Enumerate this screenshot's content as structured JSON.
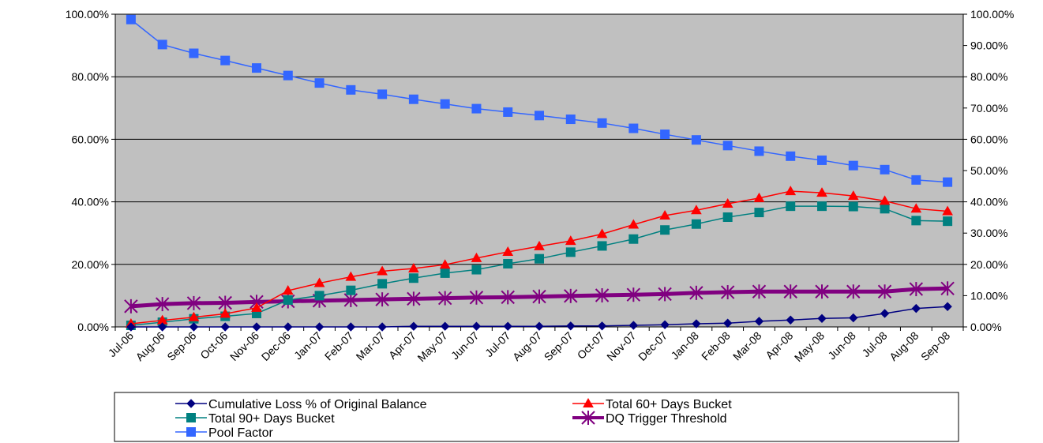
{
  "chart_data": {
    "type": "line",
    "categories": [
      "Jul-06",
      "Aug-06",
      "Sep-06",
      "Oct-06",
      "Nov-06",
      "Dec-06",
      "Jan-07",
      "Feb-07",
      "Mar-07",
      "Apr-07",
      "May-07",
      "Jun-07",
      "Jul-07",
      "Aug-07",
      "Sep-07",
      "Oct-07",
      "Nov-07",
      "Dec-07",
      "Jan-08",
      "Feb-08",
      "Mar-08",
      "Apr-08",
      "May-08",
      "Jun-08",
      "Jul-08",
      "Aug-08",
      "Sep-08"
    ],
    "y_left": {
      "ylim": [
        0,
        100
      ],
      "ticks": [
        "0.00%",
        "20.00%",
        "40.00%",
        "60.00%",
        "80.00%",
        "100.00%"
      ]
    },
    "y_right": {
      "ylim": [
        0,
        100
      ],
      "ticks": [
        "0.00%",
        "10.00%",
        "20.00%",
        "30.00%",
        "40.00%",
        "50.00%",
        "60.00%",
        "70.00%",
        "80.00%",
        "90.00%",
        "100.00%"
      ]
    },
    "grid": true,
    "plot_background": "#c0c0c0",
    "legend_position": "bottom",
    "series": [
      {
        "name": "Cumulative Loss % of Original Balance",
        "axis": "left",
        "color": "#000080",
        "marker": "diamond",
        "values": [
          0,
          0,
          0,
          0,
          0,
          0,
          0,
          0,
          0,
          0.2,
          0.2,
          0.2,
          0.2,
          0.2,
          0.3,
          0.3,
          0.5,
          0.7,
          1.0,
          1.2,
          1.8,
          2.2,
          2.7,
          2.9,
          4.3,
          5.9,
          6.5
        ]
      },
      {
        "name": "Total 60+ Days Bucket",
        "axis": "left",
        "color": "#ff0000",
        "marker": "triangle",
        "values": [
          1.0,
          2.1,
          3.1,
          4.2,
          6.1,
          11.6,
          14.0,
          16.0,
          17.8,
          18.7,
          19.9,
          22.0,
          24.0,
          25.8,
          27.5,
          29.7,
          32.7,
          35.6,
          37.3,
          39.4,
          41.2,
          43.4,
          42.9,
          41.9,
          40.3,
          37.8,
          37.0
        ]
      },
      {
        "name": "Total 90+ Days Bucket",
        "axis": "left",
        "color": "#008080",
        "marker": "square",
        "values": [
          0.5,
          1.5,
          2.6,
          3.4,
          4.3,
          8.6,
          10.0,
          11.7,
          13.8,
          15.6,
          17.2,
          18.3,
          20.2,
          21.8,
          23.9,
          25.9,
          28.1,
          31.0,
          32.9,
          35.1,
          36.6,
          38.6,
          38.6,
          38.5,
          37.8,
          34.0,
          33.8
        ]
      },
      {
        "name": "DQ Trigger Threshold",
        "axis": "left",
        "color": "#800080",
        "marker": "star",
        "values": [
          6.6,
          7.3,
          7.6,
          7.7,
          8.0,
          8.2,
          8.4,
          8.6,
          8.8,
          9.0,
          9.2,
          9.4,
          9.5,
          9.7,
          9.9,
          10.1,
          10.3,
          10.5,
          10.9,
          11.1,
          11.3,
          11.3,
          11.3,
          11.3,
          11.3,
          12.1,
          12.3
        ]
      },
      {
        "name": "Pool Factor",
        "axis": "right",
        "color": "#3366ff",
        "marker": "square",
        "values": [
          98.3,
          90.3,
          87.5,
          85.2,
          82.8,
          80.4,
          78.0,
          75.8,
          74.4,
          72.8,
          71.3,
          69.8,
          68.7,
          67.6,
          66.4,
          65.2,
          63.5,
          61.6,
          59.8,
          58.0,
          56.2,
          54.6,
          53.3,
          51.6,
          50.3,
          47.0,
          46.3
        ]
      }
    ]
  }
}
